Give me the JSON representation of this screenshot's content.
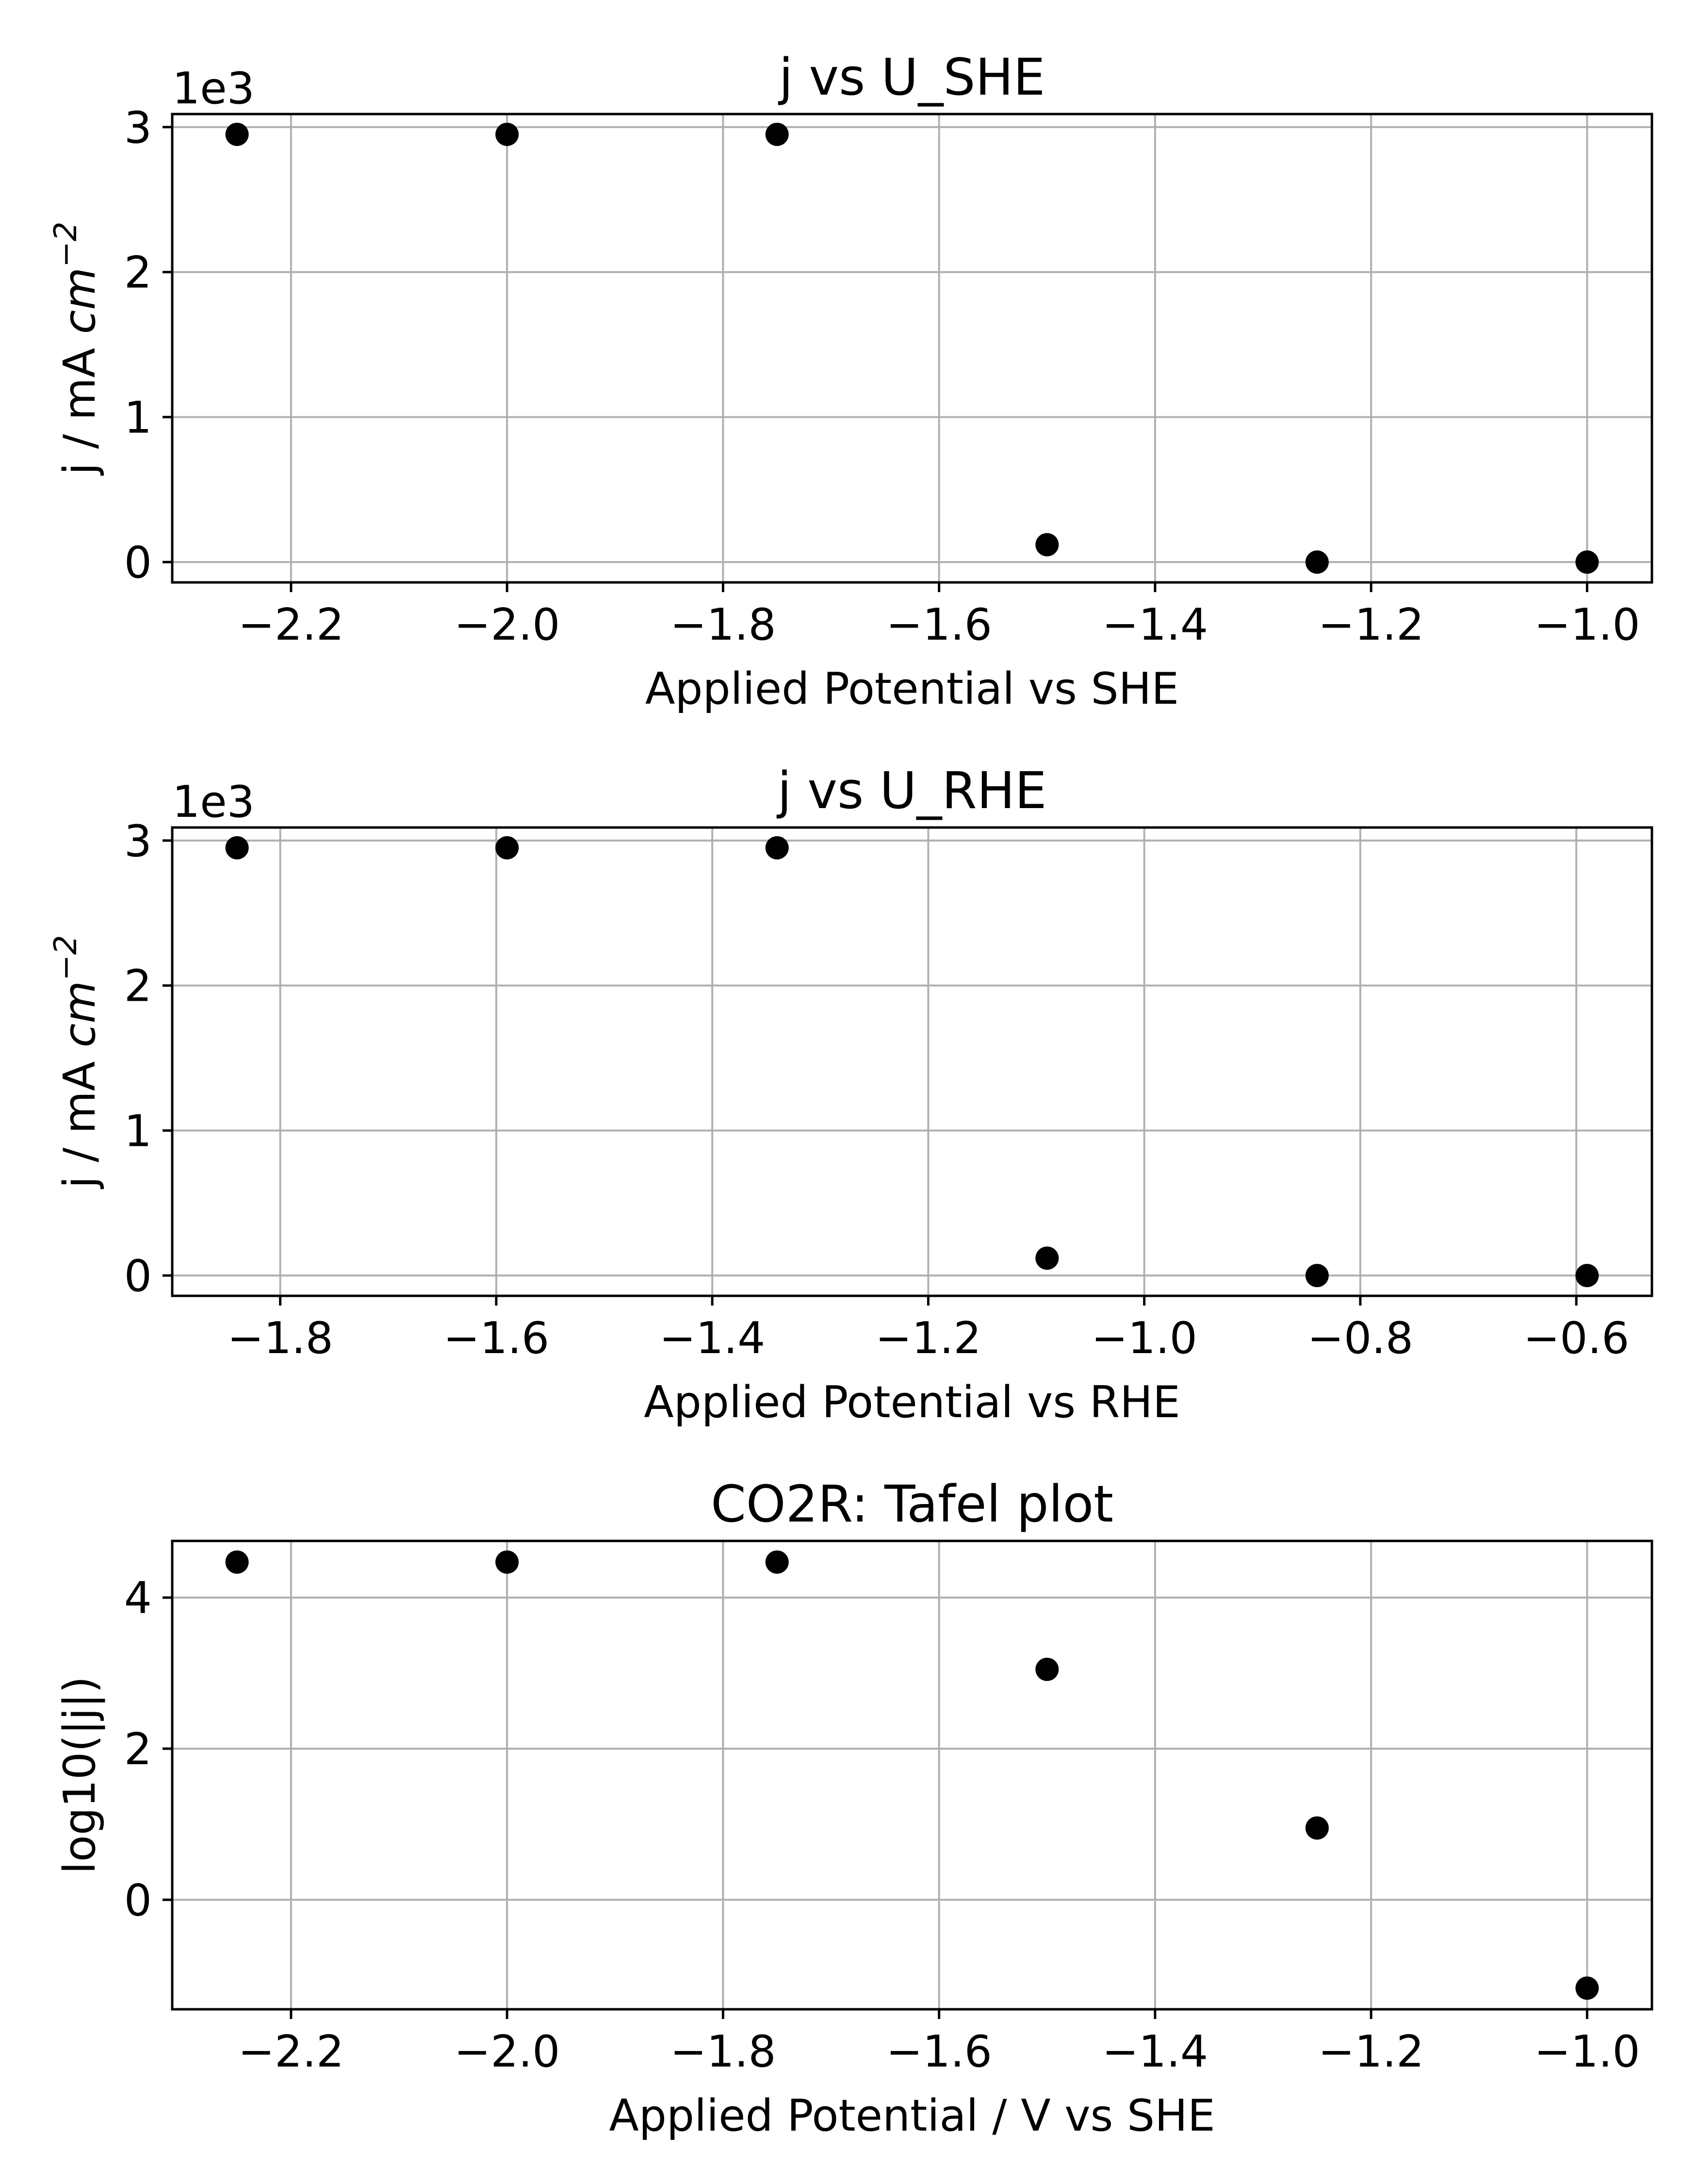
{
  "chart_data": [
    {
      "type": "scatter",
      "title": "j vs U_SHE",
      "xlabel": "Applied Potential vs SHE",
      "ylabel": "j / mA cm",
      "ylabel_exponent": "−2",
      "y_offset_label": "1e3",
      "xlim": [
        -2.31,
        -0.94
      ],
      "ylim": [
        -0.14,
        3.09
      ],
      "x_ticks": [
        -2.2,
        -2.0,
        -1.8,
        -1.6,
        -1.4,
        -1.2,
        -1.0
      ],
      "x_tick_labels": [
        "−2.2",
        "−2.0",
        "−1.8",
        "−1.6",
        "−1.4",
        "−1.2",
        "−1.0"
      ],
      "y_ticks": [
        0,
        1,
        2,
        3
      ],
      "y_tick_labels": [
        "0",
        "1",
        "2",
        "3"
      ],
      "grid": true,
      "marker_color": "#000000",
      "x": [
        -2.25,
        -2.0,
        -1.75,
        -1.5,
        -1.25,
        -1.0
      ],
      "y": [
        2.95,
        2.95,
        2.95,
        0.12,
        0.0,
        0.0
      ]
    },
    {
      "type": "scatter",
      "title": "j vs U_RHE",
      "xlabel": "Applied Potential vs RHE",
      "ylabel": "j / mA cm",
      "ylabel_exponent": "−2",
      "y_offset_label": "1e3",
      "xlim": [
        -1.9,
        -0.53
      ],
      "ylim": [
        -0.14,
        3.09
      ],
      "x_ticks": [
        -1.8,
        -1.6,
        -1.4,
        -1.2,
        -1.0,
        -0.8,
        -0.6
      ],
      "x_tick_labels": [
        "−1.8",
        "−1.6",
        "−1.4",
        "−1.2",
        "−1.0",
        "−0.8",
        "−0.6"
      ],
      "y_ticks": [
        0,
        1,
        2,
        3
      ],
      "y_tick_labels": [
        "0",
        "1",
        "2",
        "3"
      ],
      "grid": true,
      "marker_color": "#000000",
      "x": [
        -1.84,
        -1.59,
        -1.34,
        -1.09,
        -0.84,
        -0.59
      ],
      "y": [
        2.95,
        2.95,
        2.95,
        0.12,
        0.0,
        0.0
      ]
    },
    {
      "type": "scatter",
      "title": "CO2R: Tafel plot",
      "xlabel": "Applied Potential / V vs SHE",
      "ylabel": "log10(|j|)",
      "xlim": [
        -2.31,
        -0.94
      ],
      "ylim": [
        -1.45,
        4.75
      ],
      "x_ticks": [
        -2.2,
        -2.0,
        -1.8,
        -1.6,
        -1.4,
        -1.2,
        -1.0
      ],
      "x_tick_labels": [
        "−2.2",
        "−2.0",
        "−1.8",
        "−1.6",
        "−1.4",
        "−1.2",
        "−1.0"
      ],
      "y_ticks": [
        0,
        2,
        4
      ],
      "y_tick_labels": [
        "0",
        "2",
        "4"
      ],
      "grid": true,
      "marker_color": "#000000",
      "x": [
        -2.25,
        -2.0,
        -1.75,
        -1.5,
        -1.25,
        -1.0
      ],
      "y": [
        4.47,
        4.47,
        4.47,
        3.05,
        0.95,
        -1.17
      ]
    }
  ]
}
